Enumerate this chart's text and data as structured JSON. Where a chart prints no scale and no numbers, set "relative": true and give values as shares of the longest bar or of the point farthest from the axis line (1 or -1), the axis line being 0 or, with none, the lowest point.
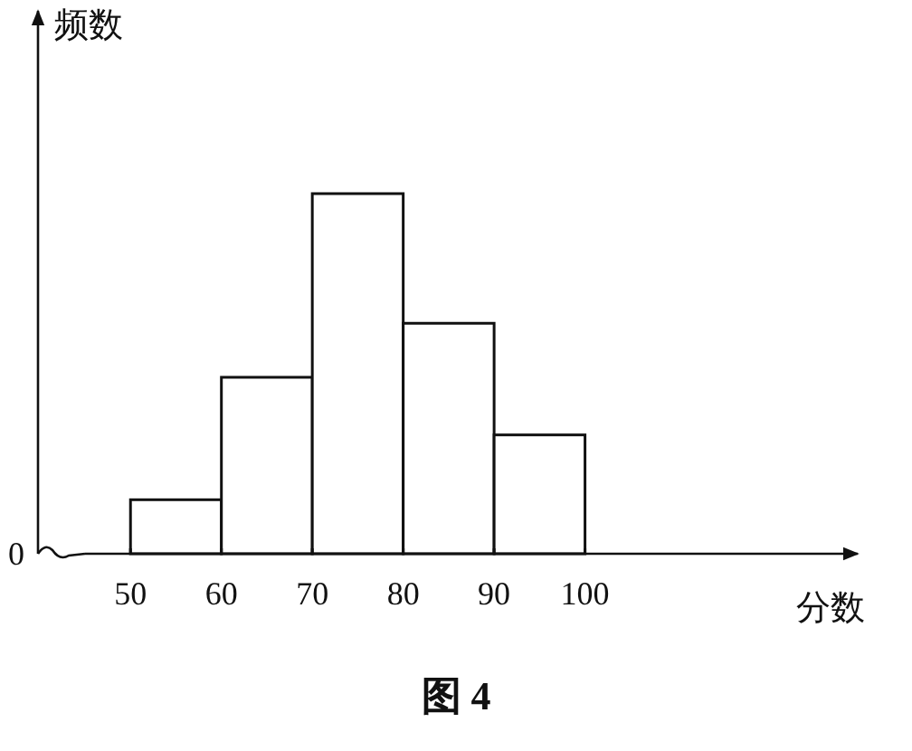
{
  "chart_data": {
    "type": "bar",
    "relative": true,
    "xlabel": "分数",
    "ylabel": "频数",
    "x": [
      55,
      65,
      75,
      85,
      95
    ],
    "values": [
      0.15,
      0.49,
      1,
      0.64,
      0.33
    ],
    "color": "#ffffff",
    "xlim": [
      45,
      130
    ],
    "xticks": [
      50,
      60,
      70,
      80,
      90,
      100
    ],
    "annotations": [
      "0",
      "图 4"
    ]
  }
}
